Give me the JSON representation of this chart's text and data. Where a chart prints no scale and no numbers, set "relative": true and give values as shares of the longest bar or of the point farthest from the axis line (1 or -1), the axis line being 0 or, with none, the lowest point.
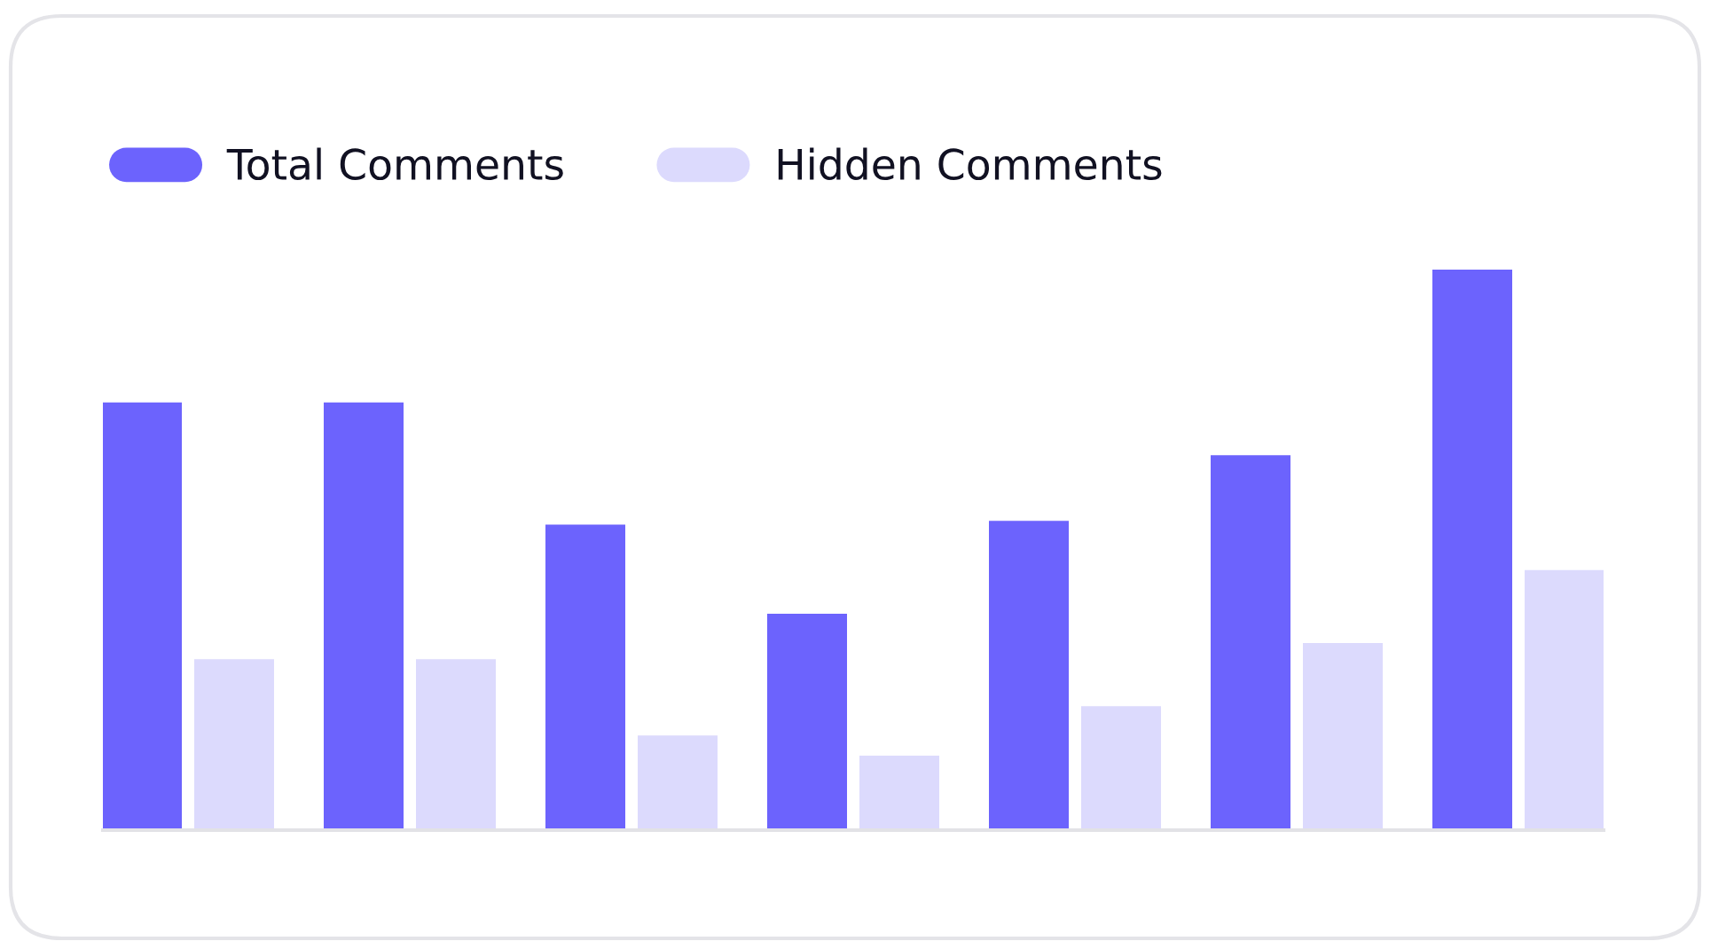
{
  "chart_data": {
    "type": "bar",
    "relative": true,
    "categories": [
      null,
      null,
      null,
      null,
      null,
      null,
      null
    ],
    "legend": "top left",
    "series": [
      {
        "name": "Total Comments",
        "color": "#6c63fd",
        "values": [
          0.763,
          0.763,
          0.545,
          0.386,
          0.552,
          0.669,
          1
        ]
      },
      {
        "name": "Hidden Comments",
        "color": "#dcdafd",
        "values": [
          0.305,
          0.305,
          0.169,
          0.133,
          0.221,
          0.334,
          0.464
        ]
      }
    ]
  }
}
